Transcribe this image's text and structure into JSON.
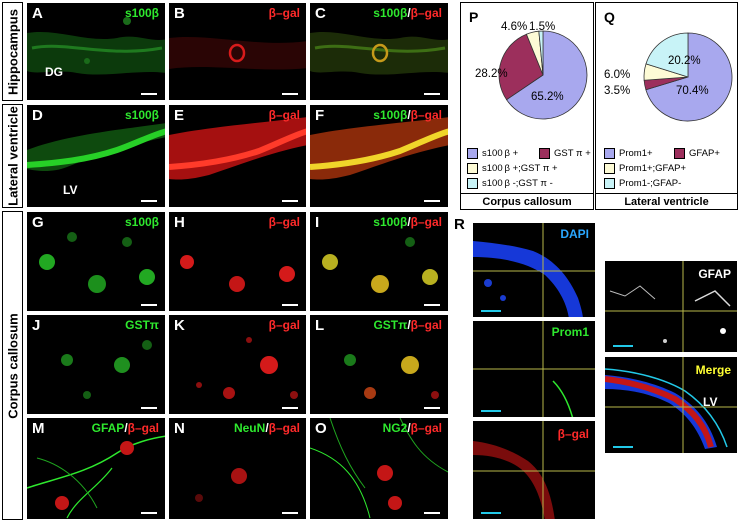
{
  "regions": {
    "hippocampus": "Hippocampus",
    "lateral_ventricle": "Lateral ventricle",
    "corpus_callosum": "Corpus callosum"
  },
  "panels": {
    "A": {
      "letter": "A",
      "green": "s100β",
      "inner": "DG"
    },
    "B": {
      "letter": "B",
      "red": "β–gal"
    },
    "C": {
      "letter": "C",
      "green": "s100β",
      "sep": "/",
      "red": "β–gal"
    },
    "D": {
      "letter": "D",
      "green": "s100β",
      "inner": "LV"
    },
    "E": {
      "letter": "E",
      "red": "β–gal"
    },
    "F": {
      "letter": "F",
      "green": "s100β",
      "sep": "/",
      "red": "β–gal"
    },
    "G": {
      "letter": "G",
      "green": "s100β"
    },
    "H": {
      "letter": "H",
      "red": "β–gal"
    },
    "I": {
      "letter": "I",
      "green": "s100β",
      "sep": "/",
      "red": "β–gal"
    },
    "J": {
      "letter": "J",
      "green": "GSTπ"
    },
    "K": {
      "letter": "K",
      "red": "β–gal"
    },
    "L": {
      "letter": "L",
      "green": "GSTπ",
      "sep": "/",
      "red": "β–gal"
    },
    "M": {
      "letter": "M",
      "green": "GFAP",
      "sep": "/",
      "red": "β–gal"
    },
    "N": {
      "letter": "N",
      "green": "NeuN",
      "sep": "/",
      "red": "β–gal"
    },
    "O": {
      "letter": "O",
      "green": "NG2",
      "sep": "/",
      "red": "β–gal"
    }
  },
  "R": {
    "letter": "R",
    "dapi": "DAPI",
    "prom1": "Prom1",
    "bgal": "β–gal",
    "gfap": "GFAP",
    "merge": "Merge",
    "lv": "LV"
  },
  "chart_data": [
    {
      "type": "pie",
      "letter": "P",
      "footer": "Corpus callosum",
      "categories": [
        "s100β+",
        "GSTπ+",
        "s100β+;GSTπ+",
        "s100β-;GSTπ-"
      ],
      "values": [
        65.2,
        28.2,
        4.6,
        1.5
      ],
      "labels": [
        "65.2%",
        "28.2%",
        "4.6%",
        "1.5%"
      ],
      "legend": [
        "s100 β +",
        "GST π +",
        "s100 β +;GST π +",
        "s100 β -;GST π -"
      ],
      "colors": [
        "#a8a8ee",
        "#9c2f5c",
        "#fdfbd6",
        "#c8f3f7"
      ]
    },
    {
      "type": "pie",
      "letter": "Q",
      "footer": "Lateral ventricle",
      "categories": [
        "Prom1+",
        "GFAP+",
        "Prom1+;GFAP+",
        "Prom1-;GFAP-"
      ],
      "values": [
        70.4,
        3.5,
        6.0,
        20.2
      ],
      "labels": [
        "70.4%",
        "3.5%",
        "6.0%",
        "20.2%"
      ],
      "legend": [
        "Prom1+",
        "GFAP+",
        "Prom1+;GFAP+",
        "Prom1-;GFAP-"
      ],
      "colors": [
        "#a8a8ee",
        "#9c2f5c",
        "#fdfbd6",
        "#c8f3f7"
      ]
    }
  ]
}
